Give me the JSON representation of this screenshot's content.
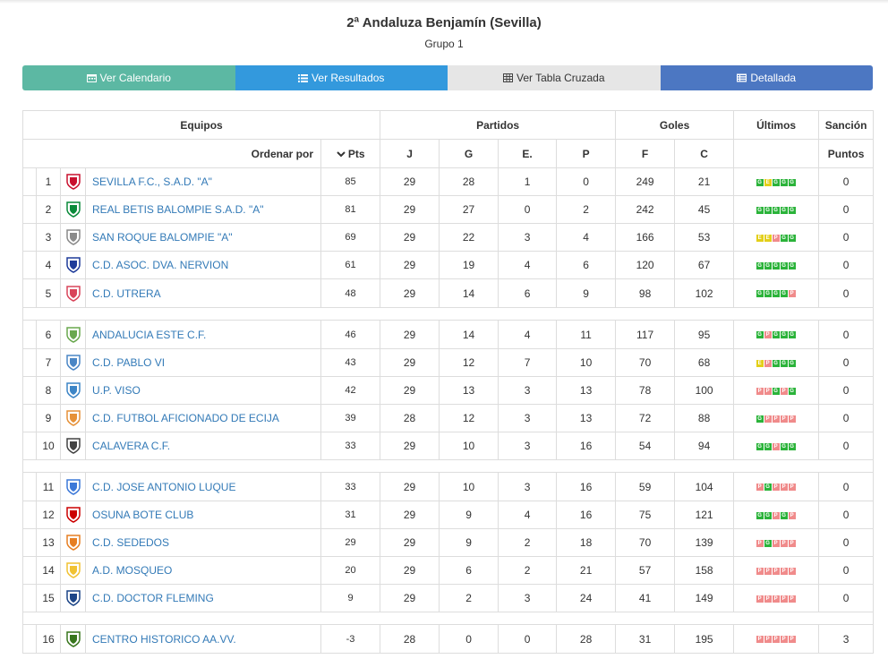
{
  "header": {
    "title": "2ª Andaluza Benjamín (Sevilla)",
    "subtitle": "Grupo 1"
  },
  "tabs": [
    {
      "label": "Ver Calendario",
      "color": "#5cb8a3",
      "text_color": "#ffffff",
      "icon": "calendar-icon"
    },
    {
      "label": "Ver Resultados",
      "color": "#3399dd",
      "text_color": "#ffffff",
      "icon": "list-icon"
    },
    {
      "label": "Ver Tabla Cruzada",
      "color": "#e6e6e6",
      "text_color": "#333333",
      "icon": "table-grid-icon"
    },
    {
      "label": "Detallada",
      "color": "#4c77c2",
      "text_color": "#ffffff",
      "icon": "detail-list-icon"
    }
  ],
  "table": {
    "group_headers": {
      "equipos": "Equipos",
      "partidos": "Partidos",
      "goles": "Goles",
      "ultimos": "Últimos",
      "sancion": "Sanción"
    },
    "sub_headers": {
      "ordenar": "Ordenar por",
      "pts": "Pts",
      "j": "J",
      "g": "G",
      "e": "E.",
      "p": "P",
      "f": "F",
      "c": "C",
      "puntos": "Puntos"
    },
    "rows": [
      {
        "pos": "1",
        "team": "SEVILLA F.C., S.A.D. \"A\"",
        "pts": "85",
        "j": "29",
        "g": "28",
        "e": "1",
        "p": "0",
        "f": "249",
        "c": "21",
        "form": [
          "G",
          "E",
          "G",
          "G",
          "G"
        ],
        "sancion": "0",
        "badge": "#c8102e"
      },
      {
        "pos": "2",
        "team": "REAL BETIS BALOMPIE S.A.D. \"A\"",
        "pts": "81",
        "j": "29",
        "g": "27",
        "e": "0",
        "p": "2",
        "f": "242",
        "c": "45",
        "form": [
          "G",
          "G",
          "G",
          "G",
          "G"
        ],
        "sancion": "0",
        "badge": "#0a8a3a"
      },
      {
        "pos": "3",
        "team": "SAN ROQUE BALOMPIE \"A\"",
        "pts": "69",
        "j": "29",
        "g": "22",
        "e": "3",
        "p": "4",
        "f": "166",
        "c": "53",
        "form": [
          "E",
          "E",
          "P",
          "G",
          "G"
        ],
        "sancion": "0",
        "badge": "#8a8a8a"
      },
      {
        "pos": "4",
        "team": "C.D. ASOC. DVA. NERVION",
        "pts": "61",
        "j": "29",
        "g": "19",
        "e": "4",
        "p": "6",
        "f": "120",
        "c": "67",
        "form": [
          "G",
          "G",
          "G",
          "G",
          "G"
        ],
        "sancion": "0",
        "badge": "#1f3c9a"
      },
      {
        "pos": "5",
        "team": "C.D. UTRERA",
        "pts": "48",
        "j": "29",
        "g": "14",
        "e": "6",
        "p": "9",
        "f": "98",
        "c": "102",
        "form": [
          "G",
          "G",
          "G",
          "G",
          "P"
        ],
        "sancion": "0",
        "badge": "#d9455a"
      },
      {
        "pos": "6",
        "team": "ANDALUCIA ESTE C.F.",
        "pts": "46",
        "j": "29",
        "g": "14",
        "e": "4",
        "p": "11",
        "f": "117",
        "c": "95",
        "form": [
          "G",
          "P",
          "G",
          "G",
          "G"
        ],
        "sancion": "0",
        "badge": "#6aa84f"
      },
      {
        "pos": "7",
        "team": "C.D. PABLO VI",
        "pts": "43",
        "j": "29",
        "g": "12",
        "e": "7",
        "p": "10",
        "f": "70",
        "c": "68",
        "form": [
          "E",
          "P",
          "G",
          "G",
          "G"
        ],
        "sancion": "0",
        "badge": "#4a86c5"
      },
      {
        "pos": "8",
        "team": "U.P. VISO",
        "pts": "42",
        "j": "29",
        "g": "13",
        "e": "3",
        "p": "13",
        "f": "78",
        "c": "100",
        "form": [
          "P",
          "P",
          "G",
          "P",
          "G"
        ],
        "sancion": "0",
        "badge": "#3d85c6"
      },
      {
        "pos": "9",
        "team": "C.D. FUTBOL AFICIONADO DE ECIJA",
        "pts": "39",
        "j": "28",
        "g": "12",
        "e": "3",
        "p": "13",
        "f": "72",
        "c": "88",
        "form": [
          "G",
          "P",
          "P",
          "P",
          "P"
        ],
        "sancion": "0",
        "badge": "#e69138"
      },
      {
        "pos": "10",
        "team": "CALAVERA C.F.",
        "pts": "33",
        "j": "29",
        "g": "10",
        "e": "3",
        "p": "16",
        "f": "54",
        "c": "94",
        "form": [
          "G",
          "G",
          "P",
          "G",
          "G"
        ],
        "sancion": "0",
        "badge": "#444444"
      },
      {
        "pos": "11",
        "team": "C.D. JOSE ANTONIO LUQUE",
        "pts": "33",
        "j": "29",
        "g": "10",
        "e": "3",
        "p": "16",
        "f": "59",
        "c": "104",
        "form": [
          "P",
          "G",
          "P",
          "P",
          "P"
        ],
        "sancion": "0",
        "badge": "#3c78d8"
      },
      {
        "pos": "12",
        "team": "OSUNA BOTE CLUB",
        "pts": "31",
        "j": "29",
        "g": "9",
        "e": "4",
        "p": "16",
        "f": "75",
        "c": "121",
        "form": [
          "G",
          "G",
          "P",
          "G",
          "P"
        ],
        "sancion": "0",
        "badge": "#cc0000"
      },
      {
        "pos": "13",
        "team": "C.D. SEDEDOS",
        "pts": "29",
        "j": "29",
        "g": "9",
        "e": "2",
        "p": "18",
        "f": "70",
        "c": "139",
        "form": [
          "P",
          "G",
          "P",
          "P",
          "P"
        ],
        "sancion": "0",
        "badge": "#e67e22"
      },
      {
        "pos": "14",
        "team": "A.D. MOSQUEO",
        "pts": "20",
        "j": "29",
        "g": "6",
        "e": "2",
        "p": "21",
        "f": "57",
        "c": "158",
        "form": [
          "P",
          "P",
          "P",
          "P",
          "P"
        ],
        "sancion": "0",
        "badge": "#f1c232"
      },
      {
        "pos": "15",
        "team": "C.D. DOCTOR FLEMING",
        "pts": "9",
        "j": "29",
        "g": "2",
        "e": "3",
        "p": "24",
        "f": "41",
        "c": "149",
        "form": [
          "P",
          "P",
          "P",
          "P",
          "P"
        ],
        "sancion": "0",
        "badge": "#1c4587"
      },
      {
        "pos": "16",
        "team": "CENTRO HISTORICO AA.VV.",
        "pts": "-3",
        "j": "28",
        "g": "0",
        "e": "0",
        "p": "28",
        "f": "31",
        "c": "195",
        "form": [
          "P",
          "P",
          "P",
          "P",
          "P"
        ],
        "sancion": "3",
        "badge": "#38761d"
      }
    ],
    "separators_after": [
      5,
      10,
      15
    ],
    "tall_rows": [
      5,
      6,
      11,
      16
    ]
  }
}
